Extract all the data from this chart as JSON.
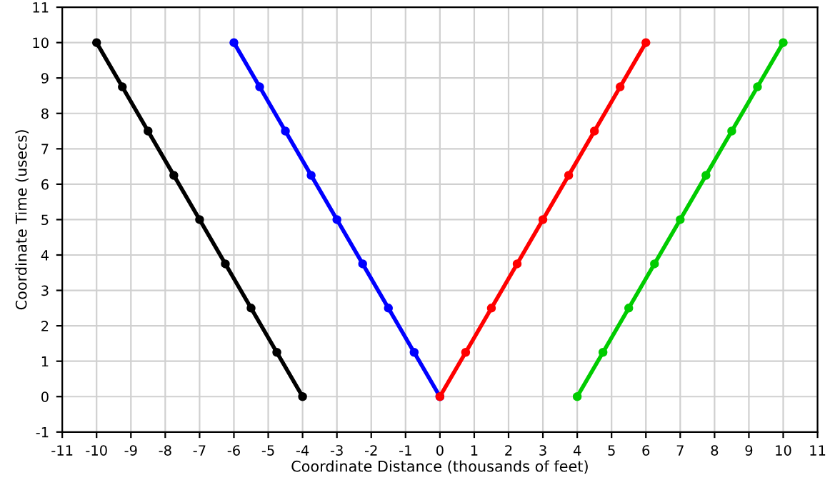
{
  "chart_data": {
    "type": "line",
    "xlabel": "Coordinate Distance (thousands of feet)",
    "ylabel": "Coordinate Time (usecs)",
    "series": [
      {
        "color": "#000000",
        "x": [
          -10,
          -9.25,
          -8.5,
          -7.75,
          -7,
          -6.25,
          -5.5,
          -4.75,
          -4
        ],
        "values": [
          10,
          8.75,
          7.5,
          6.25,
          5,
          3.75,
          2.5,
          1.25,
          0
        ]
      },
      {
        "color": "#0000ff",
        "x": [
          -6,
          -5.25,
          -4.5,
          -3.75,
          -3,
          -2.25,
          -1.5,
          -0.75,
          0
        ],
        "values": [
          10,
          8.75,
          7.5,
          6.25,
          5,
          3.75,
          2.5,
          1.25,
          0
        ]
      },
      {
        "color": "#ff0000",
        "x": [
          0,
          0.75,
          1.5,
          2.25,
          3,
          3.75,
          4.5,
          5.25,
          6
        ],
        "values": [
          0,
          1.25,
          2.5,
          3.75,
          5,
          6.25,
          7.5,
          8.75,
          10
        ]
      },
      {
        "color": "#00cc00",
        "x": [
          4,
          4.75,
          5.5,
          6.25,
          7,
          7.75,
          8.5,
          9.25,
          10
        ],
        "values": [
          0,
          1.25,
          2.5,
          3.75,
          5,
          6.25,
          7.5,
          8.75,
          10
        ]
      }
    ],
    "xlim": [
      -11,
      11
    ],
    "xticks": [
      -11,
      -10,
      -9,
      -8,
      -7,
      -6,
      -5,
      -4,
      -3,
      -2,
      -1,
      0,
      1,
      2,
      3,
      4,
      5,
      6,
      7,
      8,
      9,
      10,
      11
    ],
    "ylim": [
      -1,
      11
    ],
    "yticks": [
      -1,
      0,
      1,
      2,
      3,
      4,
      5,
      6,
      7,
      8,
      9,
      10,
      11
    ],
    "grid": true,
    "marker": "circle",
    "line_style": "solid"
  }
}
